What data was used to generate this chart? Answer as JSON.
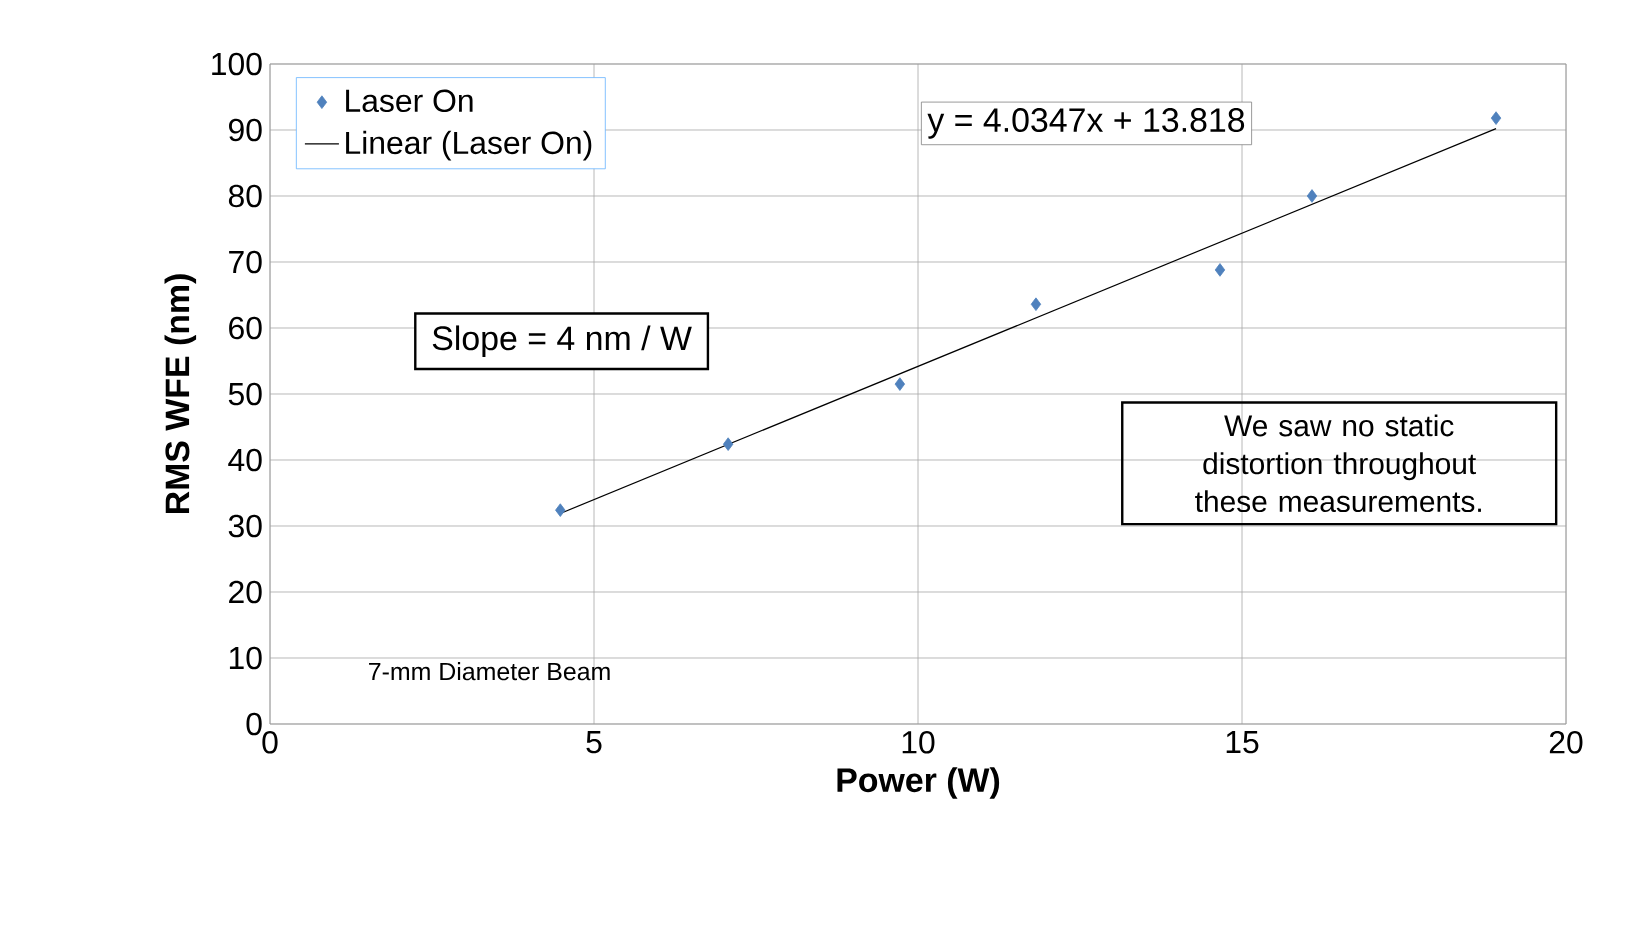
{
  "chart_data": {
    "type": "scatter",
    "xlabel": "Power (W)",
    "ylabel": "RMS WFE (nm)",
    "xlim": [
      0,
      20
    ],
    "xticks": [
      0,
      5,
      10,
      15,
      20
    ],
    "ylim": [
      0,
      100
    ],
    "yticks": [
      0,
      10,
      20,
      30,
      40,
      50,
      60,
      70,
      80,
      90,
      100
    ],
    "grid": true,
    "legend": "top left",
    "marker": "diamond",
    "series": [
      {
        "name": "Laser On",
        "color": "#4f81bd",
        "x": [
          4.48,
          7.07,
          9.72,
          11.82,
          14.66,
          16.08,
          18.92
        ],
        "values": [
          32.4,
          42.4,
          51.5,
          63.6,
          68.8,
          80,
          91.8
        ]
      },
      {
        "name": "Linear (Laser On)",
        "type": "line",
        "color": "#000000",
        "marker": "none",
        "x": [
          4.48,
          18.92
        ],
        "values": [
          31.9,
          90.2
        ]
      }
    ],
    "annotations": [
      "y = 4.0347x + 13.818",
      "Slope = 4 nm / W",
      "We saw no static distortion throughout these measurements.",
      "7-mm Diameter Beam"
    ]
  }
}
